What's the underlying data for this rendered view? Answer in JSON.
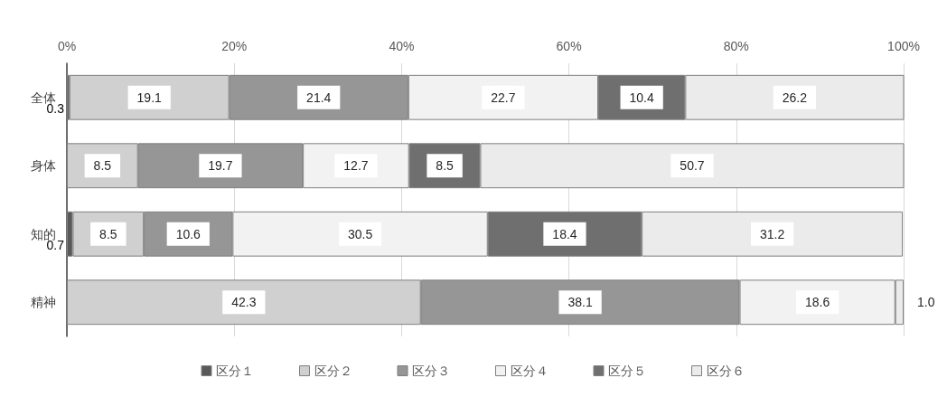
{
  "chart_data": {
    "type": "bar",
    "orientation": "horizontal",
    "stacked": true,
    "categories": [
      "全体",
      "身体",
      "知的",
      "精神"
    ],
    "series": [
      {
        "name": "区分１",
        "color": "#595959",
        "values": [
          0.3,
          null,
          0.7,
          null
        ],
        "value_labels": [
          "0.3",
          null,
          "0.7",
          null
        ]
      },
      {
        "name": "区分２",
        "color": "#d0d0d0",
        "values": [
          19.1,
          8.5,
          8.5,
          42.3
        ],
        "value_labels": [
          "19.1",
          "8.5",
          "8.5",
          "42.3"
        ]
      },
      {
        "name": "区分３",
        "color": "#969696",
        "values": [
          21.4,
          19.7,
          10.6,
          38.1
        ],
        "value_labels": [
          "21.4",
          "19.7",
          "10.6",
          "38.1"
        ]
      },
      {
        "name": "区分４",
        "color": "#f2f2f2",
        "values": [
          22.7,
          12.7,
          30.5,
          18.6
        ],
        "value_labels": [
          "22.7",
          "12.7",
          "30.5",
          "18.6"
        ]
      },
      {
        "name": "区分５",
        "color": "#6f6f6f",
        "values": [
          10.4,
          8.5,
          18.4,
          null
        ],
        "value_labels": [
          "10.4",
          "8.5",
          "18.4",
          null
        ]
      },
      {
        "name": "区分６",
        "color": "#ebebeb",
        "values": [
          26.2,
          50.7,
          31.2,
          1.0
        ],
        "value_labels": [
          "26.2",
          "50.7",
          "31.2",
          "1.0"
        ]
      }
    ],
    "xlim": [
      0,
      100
    ],
    "xticks": [
      {
        "value": 0,
        "label": "0%"
      },
      {
        "value": 20,
        "label": "20%"
      },
      {
        "value": 40,
        "label": "40%"
      },
      {
        "value": 60,
        "label": "60%"
      },
      {
        "value": 80,
        "label": "80%"
      },
      {
        "value": 100,
        "label": "100%"
      }
    ],
    "grid": "x",
    "legend": "bottom"
  }
}
